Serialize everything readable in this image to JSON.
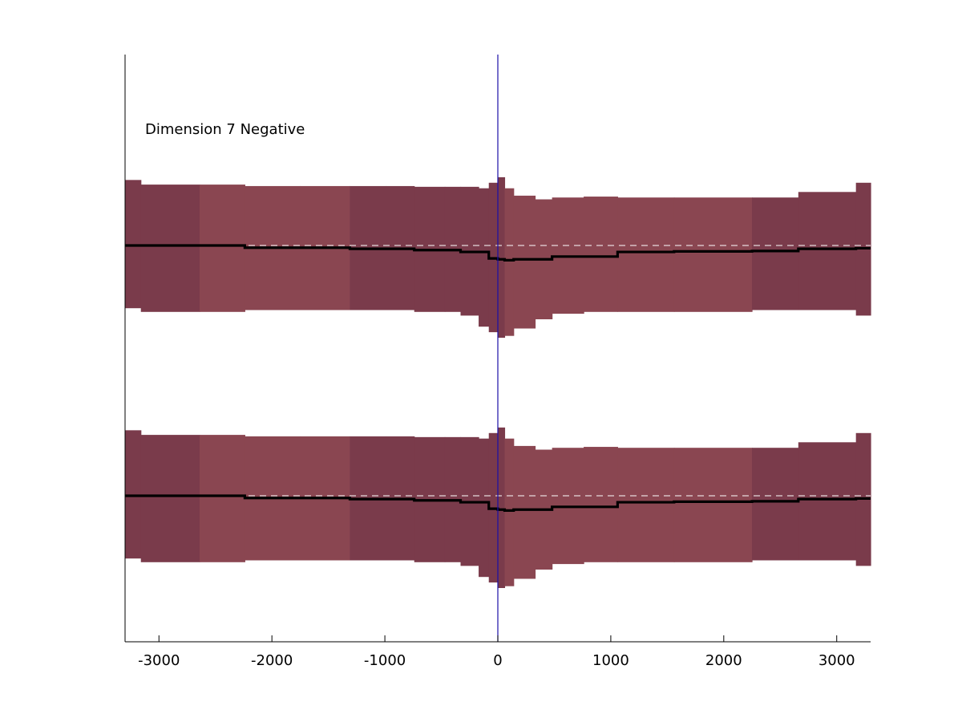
{
  "chart_data": {
    "type": "area",
    "title": "Dimension 7 Negative",
    "xlabel": "",
    "ylabel": "",
    "xlim": [
      -3300,
      3300
    ],
    "xticks": [
      -3000,
      -2000,
      -1000,
      0,
      1000,
      2000,
      3000
    ],
    "grid": false,
    "legend": "none",
    "reference_vline_x": 0,
    "colors": {
      "band_light": "#8a4651",
      "band_dark": "#7a3b4b",
      "mean_line": "#000000",
      "baseline_dashed": "#ffffff",
      "zero_line": "#1a0fa8",
      "axis": "#000000"
    },
    "bin_edges": [
      -3300,
      -3160,
      -2640,
      -2240,
      -1750,
      -1310,
      -990,
      -740,
      -470,
      -330,
      -170,
      -80,
      0,
      60,
      140,
      330,
      480,
      760,
      1060,
      1560,
      2250,
      2660,
      3170,
      3300
    ],
    "band_shades": [
      "dark",
      "dark",
      "light",
      "light",
      "light",
      "dark",
      "dark",
      "dark",
      "dark",
      "dark",
      "dark",
      "dark",
      "dark",
      "light",
      "light",
      "light",
      "light",
      "light",
      "light",
      "light",
      "dark",
      "dark",
      "dark"
    ],
    "series": [
      {
        "name": "",
        "baseline": 0,
        "upper": [
          0.355,
          0.33,
          0.33,
          0.322,
          0.322,
          0.322,
          0.322,
          0.318,
          0.318,
          0.318,
          0.31,
          0.34,
          0.37,
          0.31,
          0.27,
          0.25,
          0.26,
          0.265,
          0.26,
          0.26,
          0.26,
          0.29,
          0.34
        ],
        "mean": [
          0.0,
          0.0,
          0.0,
          -0.012,
          -0.012,
          -0.018,
          -0.018,
          -0.025,
          -0.025,
          -0.035,
          -0.035,
          -0.07,
          -0.075,
          -0.08,
          -0.075,
          -0.075,
          -0.06,
          -0.06,
          -0.035,
          -0.032,
          -0.03,
          -0.018,
          -0.015
        ],
        "lower": [
          -0.34,
          -0.36,
          -0.36,
          -0.35,
          -0.35,
          -0.35,
          -0.35,
          -0.36,
          -0.36,
          -0.38,
          -0.44,
          -0.47,
          -0.5,
          -0.49,
          -0.45,
          -0.4,
          -0.37,
          -0.36,
          -0.36,
          -0.36,
          -0.35,
          -0.35,
          -0.38
        ]
      },
      {
        "name": "",
        "baseline": 0,
        "upper": [
          0.355,
          0.33,
          0.33,
          0.322,
          0.322,
          0.322,
          0.322,
          0.318,
          0.318,
          0.318,
          0.31,
          0.34,
          0.37,
          0.31,
          0.27,
          0.25,
          0.26,
          0.265,
          0.26,
          0.26,
          0.26,
          0.29,
          0.34
        ],
        "mean": [
          0.0,
          0.0,
          0.0,
          -0.012,
          -0.012,
          -0.018,
          -0.018,
          -0.025,
          -0.025,
          -0.035,
          -0.035,
          -0.07,
          -0.075,
          -0.08,
          -0.075,
          -0.075,
          -0.06,
          -0.06,
          -0.035,
          -0.032,
          -0.03,
          -0.018,
          -0.015
        ],
        "lower": [
          -0.34,
          -0.36,
          -0.36,
          -0.35,
          -0.35,
          -0.35,
          -0.35,
          -0.36,
          -0.36,
          -0.38,
          -0.44,
          -0.47,
          -0.5,
          -0.49,
          -0.45,
          -0.4,
          -0.37,
          -0.36,
          -0.36,
          -0.36,
          -0.35,
          -0.35,
          -0.38
        ]
      }
    ]
  }
}
